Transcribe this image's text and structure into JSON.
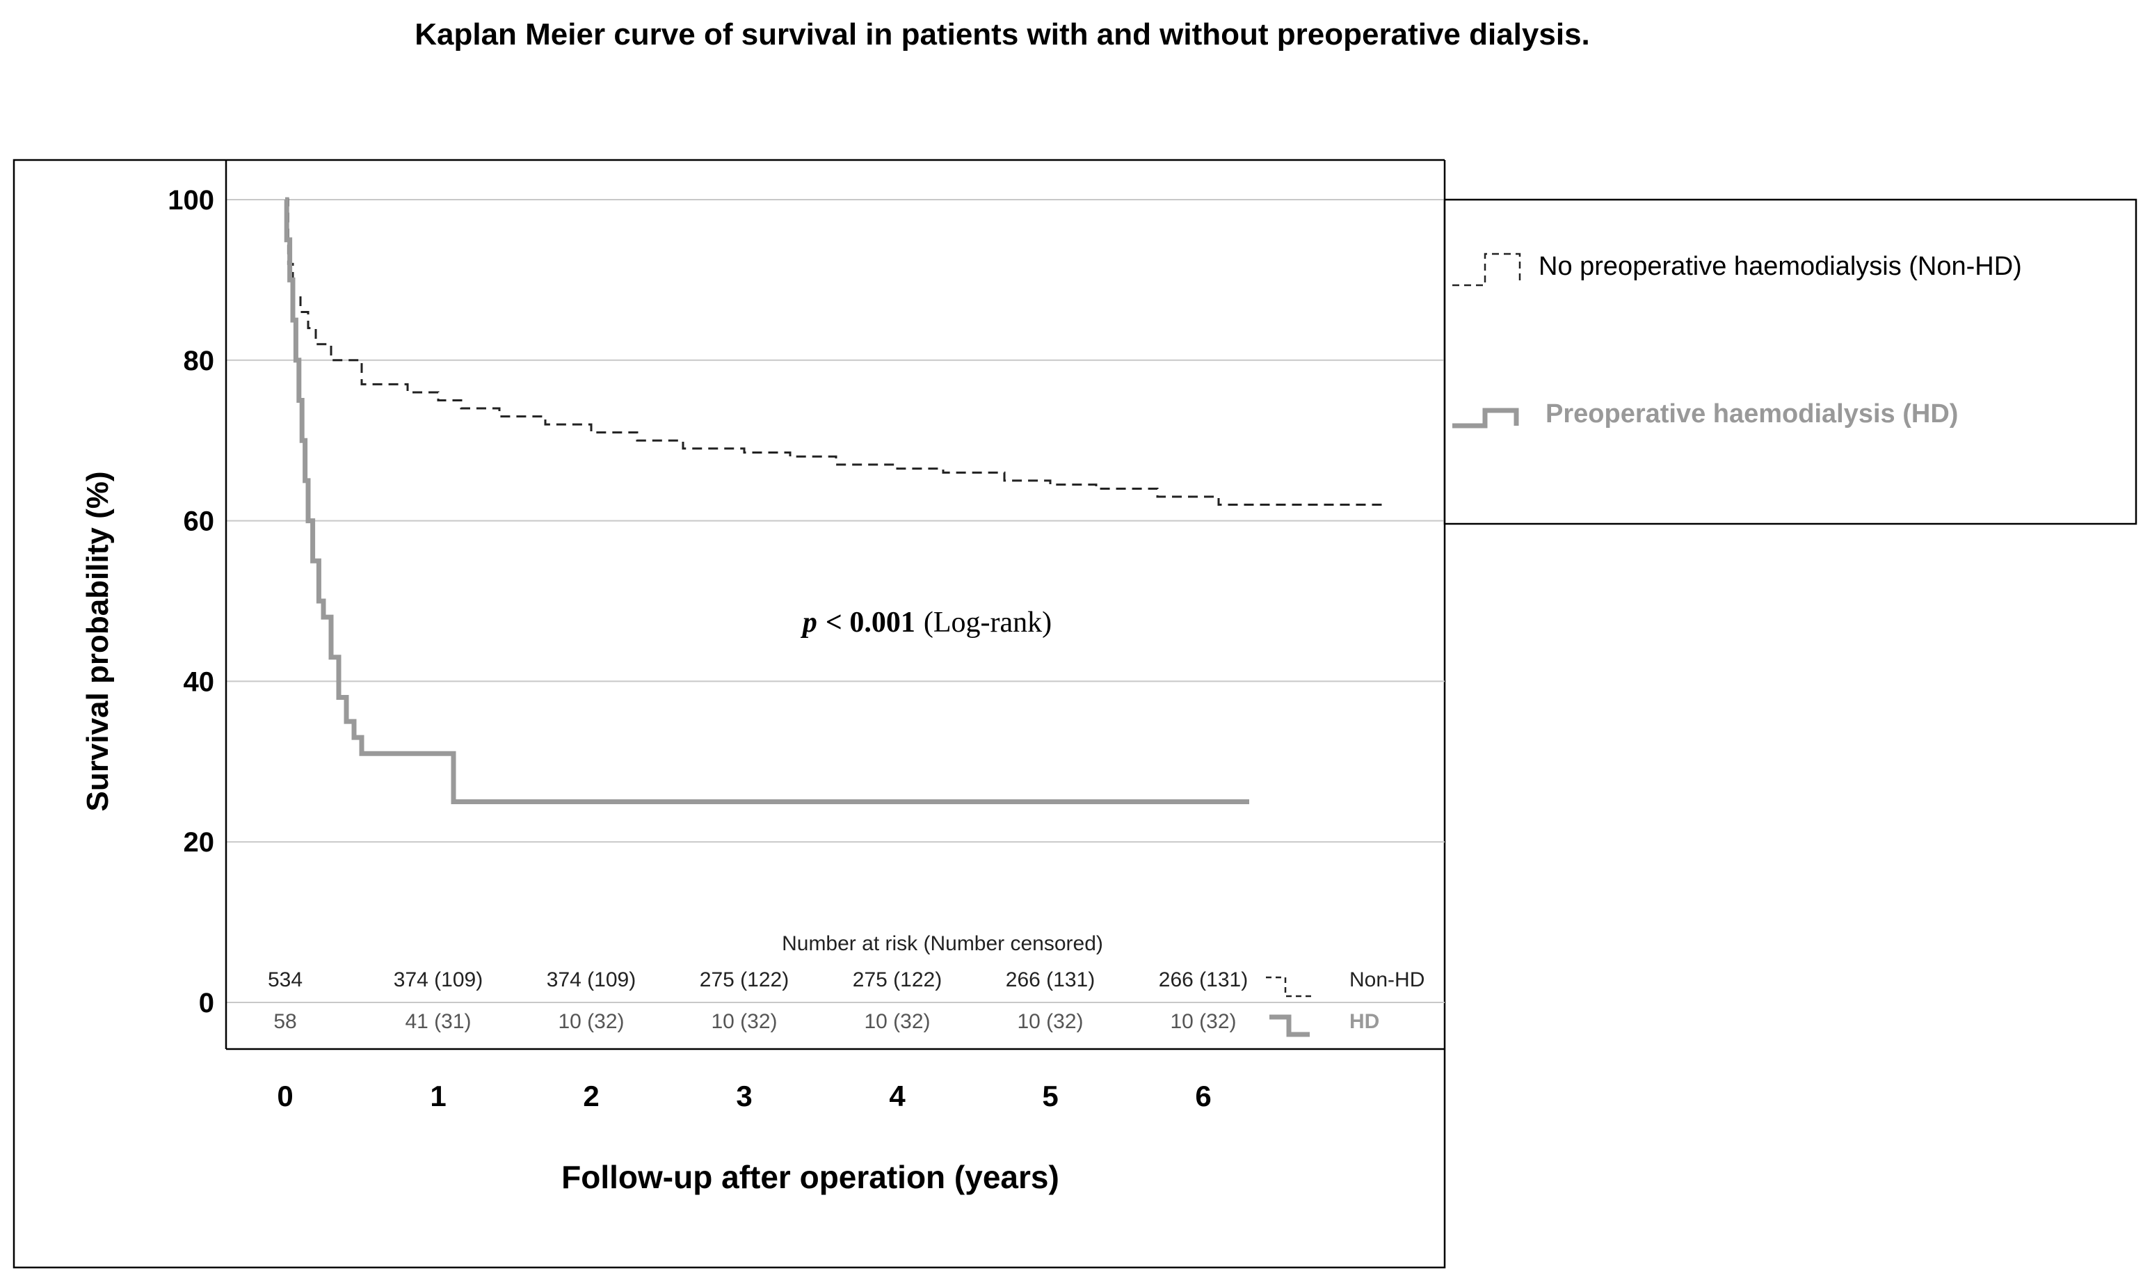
{
  "chart_data": {
    "type": "line",
    "title": "Kaplan Meier curve of survival in patients with and without preoperative dialysis.",
    "xlabel": "Follow-up after operation (years)",
    "ylabel": "Survival probability (%)",
    "x_ticks": [
      "0",
      "1",
      "2",
      "3",
      "4",
      "5",
      "6"
    ],
    "y_ticks": [
      "100",
      "80",
      "60",
      "40",
      "20",
      "0"
    ],
    "ylim": [
      0,
      100
    ],
    "grid": true,
    "legend_position": "right",
    "annotation": {
      "p_symbol": "p",
      "p_value": "< 0.001",
      "test": "(Log-rank)"
    },
    "series": [
      {
        "name": "No preoperative haemodialysis (Non-HD)",
        "short_name": "Non-HD",
        "style": "dashed",
        "color": "#222222",
        "x": [
          0,
          0.02,
          0.05,
          0.1,
          0.15,
          0.2,
          0.3,
          0.5,
          0.8,
          1.0,
          1.15,
          1.4,
          1.7,
          2.0,
          2.3,
          2.6,
          3.0,
          3.3,
          3.6,
          4.0,
          4.3,
          4.7,
          5.0,
          5.3,
          5.7,
          6.0,
          6.1,
          6.6,
          7.2
        ],
        "y": [
          100,
          92,
          88,
          86,
          84,
          82,
          80,
          77,
          76,
          75,
          74,
          73,
          72,
          71,
          70,
          69,
          68.5,
          68,
          67,
          66.5,
          66,
          65,
          64.5,
          64,
          63,
          63,
          62,
          62,
          62
        ]
      },
      {
        "name": "Preoperative haemodialysis (HD)",
        "short_name": "HD",
        "style": "solid",
        "color": "#999999",
        "x": [
          0,
          0.01,
          0.03,
          0.05,
          0.07,
          0.09,
          0.11,
          0.13,
          0.15,
          0.18,
          0.22,
          0.25,
          0.3,
          0.35,
          0.4,
          0.45,
          0.5,
          0.8,
          1.05,
          1.1,
          6.3
        ],
        "y": [
          100,
          95,
          90,
          85,
          80,
          75,
          70,
          65,
          60,
          55,
          50,
          48,
          43,
          38,
          35,
          33,
          31,
          31,
          31,
          25,
          25
        ]
      }
    ],
    "risk_table": {
      "header": "Number at risk (Number censored)",
      "rows": [
        {
          "label": "Non-HD",
          "values": [
            "534",
            "374 (109)",
            "374 (109)",
            "275 (122)",
            "275 (122)",
            "266 (131)",
            "266 (131)"
          ]
        },
        {
          "label": "HD",
          "values": [
            "58",
            "41 (31)",
            "10 (32)",
            "10 (32)",
            "10 (32)",
            "10 (32)",
            "10 (32)"
          ]
        }
      ]
    }
  }
}
